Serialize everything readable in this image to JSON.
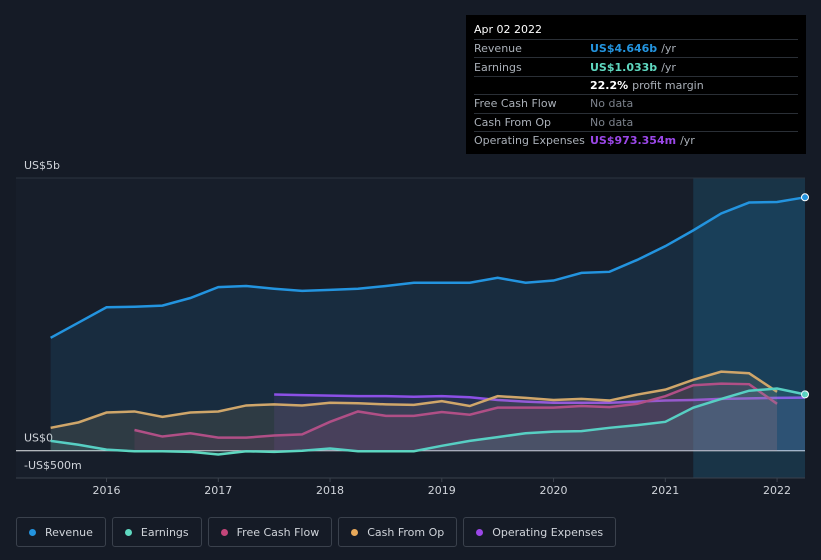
{
  "chart_data": {
    "type": "line",
    "x": [
      2015.5,
      2015.75,
      2016,
      2016.25,
      2016.5,
      2016.75,
      2017,
      2017.25,
      2017.5,
      2017.75,
      2018,
      2018.25,
      2018.5,
      2018.75,
      2019,
      2019.25,
      2019.5,
      2019.75,
      2020,
      2020.25,
      2020.5,
      2020.75,
      2021,
      2021.25,
      2021.5,
      2021.75,
      2022,
      2022.25
    ],
    "xlim": [
      2015.19,
      2022.25
    ],
    "xticks": [
      2016,
      2017,
      2018,
      2019,
      2020,
      2021,
      2022
    ],
    "ylim": [
      -0.5,
      5
    ],
    "yticks": [
      {
        "value": 5,
        "label": "US$5b"
      },
      {
        "value": 0,
        "label": "US$0"
      },
      {
        "value": -0.5,
        "label": "-US$500m"
      }
    ],
    "highlight_start": 2021.25,
    "series": [
      {
        "name": "Revenue",
        "color": "#2394df",
        "values": [
          2.07,
          2.35,
          2.63,
          2.64,
          2.66,
          2.8,
          3.0,
          3.02,
          2.97,
          2.93,
          2.95,
          2.97,
          3.02,
          3.08,
          3.08,
          3.08,
          3.17,
          3.08,
          3.12,
          3.26,
          3.28,
          3.5,
          3.75,
          4.04,
          4.35,
          4.55,
          4.56,
          4.646
        ]
      },
      {
        "name": "Earnings",
        "color": "#5fd8c0",
        "values": [
          0.18,
          0.11,
          0.02,
          -0.01,
          -0.01,
          -0.02,
          -0.07,
          -0.01,
          -0.02,
          0.0,
          0.04,
          -0.01,
          -0.01,
          -0.01,
          0.09,
          0.18,
          0.25,
          0.32,
          0.35,
          0.36,
          0.42,
          0.47,
          0.53,
          0.79,
          0.95,
          1.1,
          1.14,
          1.033
        ]
      },
      {
        "name": "Free Cash Flow",
        "color": "#c4467a",
        "values": [
          null,
          null,
          null,
          0.38,
          0.26,
          0.32,
          0.24,
          0.24,
          0.28,
          0.3,
          0.53,
          0.72,
          0.64,
          0.64,
          0.71,
          0.66,
          0.79,
          0.79,
          0.79,
          0.82,
          0.8,
          0.86,
          1.0,
          1.2,
          1.23,
          1.22,
          0.86,
          null
        ]
      },
      {
        "name": "Cash From Op",
        "color": "#e8a95a",
        "values": [
          0.42,
          0.52,
          0.7,
          0.72,
          0.62,
          0.7,
          0.72,
          0.83,
          0.85,
          0.83,
          0.88,
          0.87,
          0.85,
          0.84,
          0.91,
          0.82,
          1.0,
          0.97,
          0.93,
          0.95,
          0.92,
          1.03,
          1.12,
          1.3,
          1.45,
          1.42,
          1.08,
          null
        ]
      },
      {
        "name": "Operating Expenses",
        "color": "#9b47e8",
        "values": [
          null,
          null,
          null,
          null,
          null,
          null,
          null,
          null,
          1.03,
          1.02,
          1.01,
          1.0,
          1.0,
          0.99,
          1.0,
          0.98,
          0.93,
          0.9,
          0.88,
          0.88,
          0.88,
          0.9,
          0.92,
          0.93,
          0.95,
          0.96,
          0.97,
          0.973
        ]
      }
    ],
    "tooltip": {
      "date": "Apr 02 2022",
      "rows": [
        {
          "label": "Revenue",
          "value": "US$4.646b",
          "unit": "/yr",
          "color": "#2394df"
        },
        {
          "label": "Earnings",
          "value": "US$1.033b",
          "unit": "/yr",
          "color": "#5fd8c0"
        },
        {
          "value": "22.2%",
          "unit": "profit margin",
          "color": "#ffffff"
        },
        {
          "label": "Free Cash Flow",
          "value": "No data",
          "color": "#7c828c"
        },
        {
          "label": "Cash From Op",
          "value": "No data",
          "color": "#7c828c"
        },
        {
          "label": "Operating Expenses",
          "value": "US$973.354m",
          "unit": "/yr",
          "color": "#9b47e8"
        }
      ]
    }
  }
}
